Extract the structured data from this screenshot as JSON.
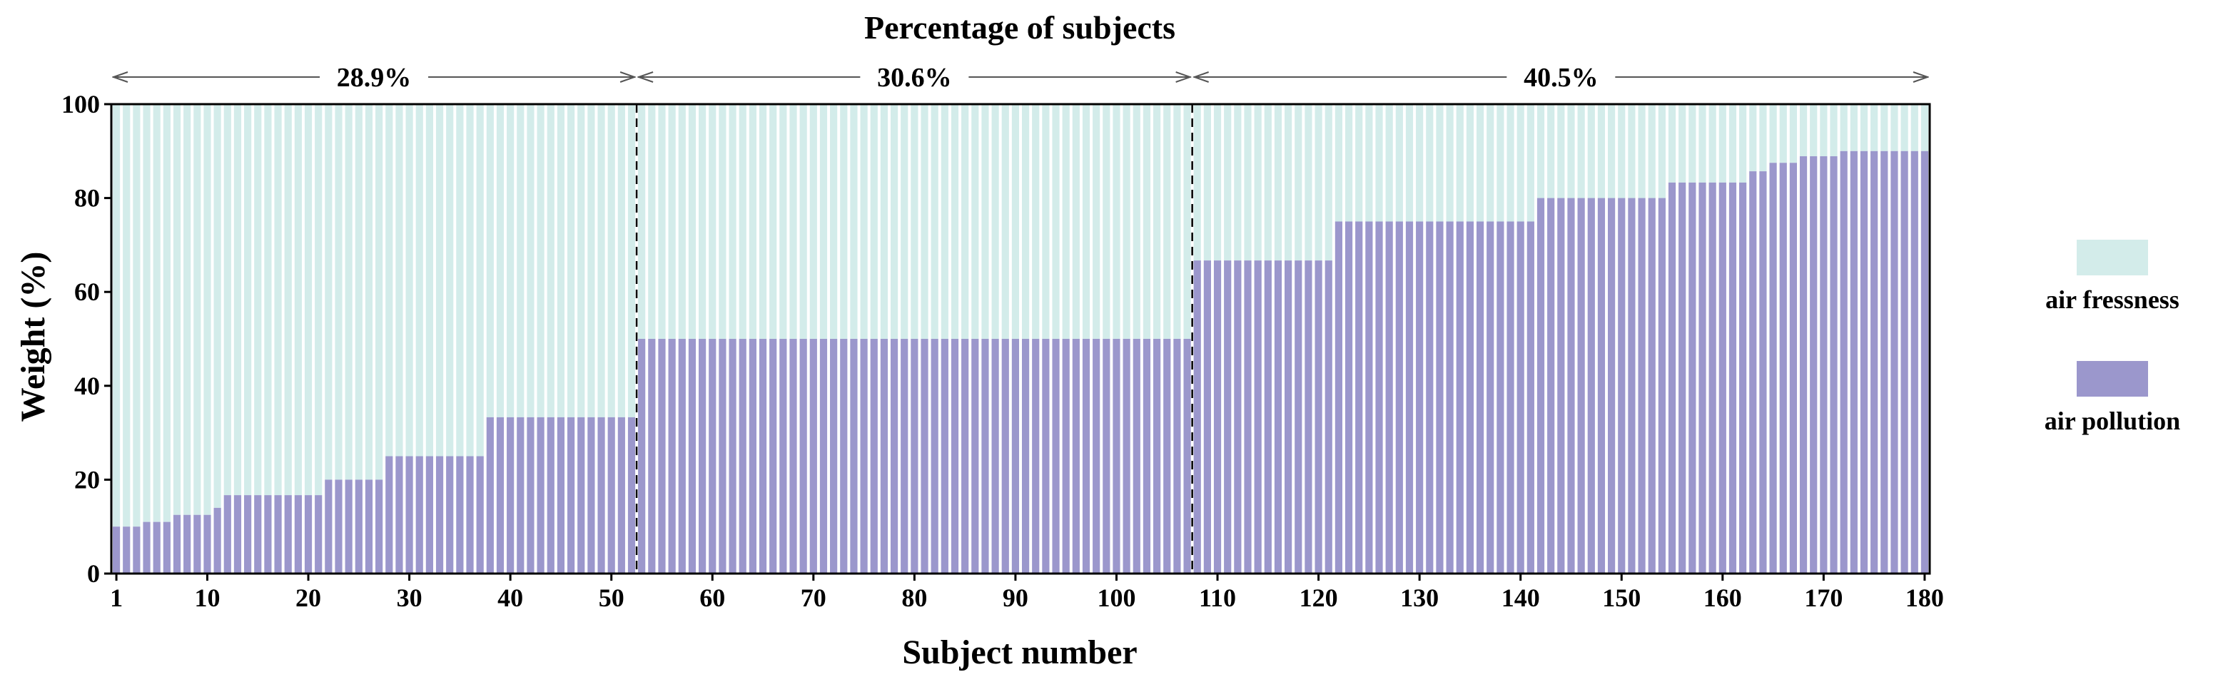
{
  "chart_data": {
    "type": "bar",
    "stacked": true,
    "title": "Percentage of subjects",
    "xlabel": "Subject number",
    "ylabel": "Weight (%)",
    "xlim": [
      1,
      180
    ],
    "ylim": [
      0,
      100
    ],
    "x_ticks": [
      1,
      10,
      20,
      30,
      40,
      50,
      60,
      70,
      80,
      90,
      100,
      110,
      120,
      130,
      140,
      150,
      160,
      170,
      180
    ],
    "y_ticks": [
      0,
      20,
      40,
      60,
      80,
      100
    ],
    "colors": {
      "air fressness": "#d3ecea",
      "air pollution": "#9b97cc"
    },
    "legend": {
      "position": "right",
      "entries": [
        "air fressness",
        "air pollution"
      ]
    },
    "segments": [
      {
        "label": "28.9%",
        "from": 1,
        "to": 52
      },
      {
        "label": "30.6%",
        "from": 53,
        "to": 107
      },
      {
        "label": "40.5%",
        "from": 108,
        "to": 180
      }
    ],
    "series": [
      {
        "name": "air pollution",
        "runs": [
          {
            "from": 1,
            "to": 3,
            "value": 10
          },
          {
            "from": 4,
            "to": 6,
            "value": 11
          },
          {
            "from": 7,
            "to": 10,
            "value": 12.5
          },
          {
            "from": 11,
            "to": 11,
            "value": 14
          },
          {
            "from": 12,
            "to": 21,
            "value": 16.7
          },
          {
            "from": 22,
            "to": 27,
            "value": 20
          },
          {
            "from": 28,
            "to": 37,
            "value": 25
          },
          {
            "from": 38,
            "to": 52,
            "value": 33.3
          },
          {
            "from": 53,
            "to": 107,
            "value": 50
          },
          {
            "from": 108,
            "to": 121,
            "value": 66.7
          },
          {
            "from": 122,
            "to": 141,
            "value": 75
          },
          {
            "from": 142,
            "to": 154,
            "value": 80
          },
          {
            "from": 155,
            "to": 162,
            "value": 83.3
          },
          {
            "from": 163,
            "to": 164,
            "value": 85.7
          },
          {
            "from": 165,
            "to": 167,
            "value": 87.5
          },
          {
            "from": 168,
            "to": 171,
            "value": 88.9
          },
          {
            "from": 172,
            "to": 180,
            "value": 90
          }
        ]
      },
      {
        "name": "air fressness",
        "note_complement": "100 minus air pollution value for each subject"
      }
    ]
  }
}
